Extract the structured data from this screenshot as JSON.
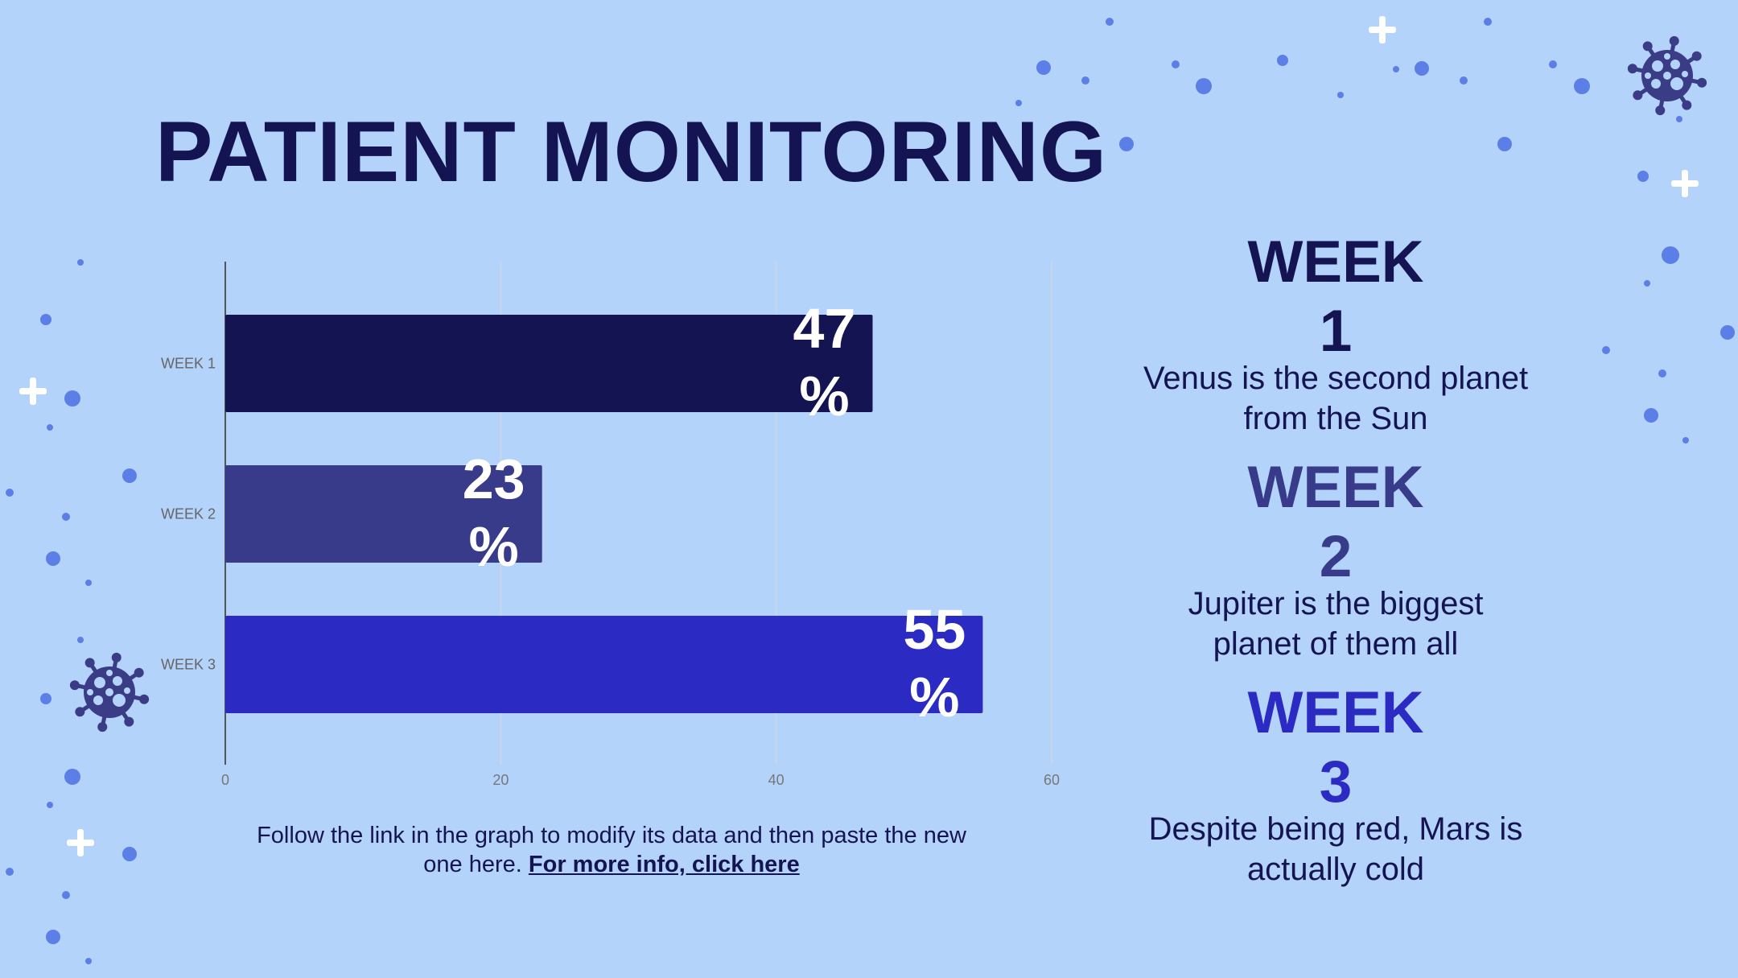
{
  "slide": {
    "title": "PATIENT MONITORING",
    "note_text": "Follow the link in the graph to modify its data and then paste the new one here.",
    "note_link": "For more info, click here"
  },
  "weeks": [
    {
      "heading": "WEEK 1",
      "description": "Venus is the second planet from the Sun",
      "color": "#151452"
    },
    {
      "heading": "WEEK 2",
      "description": "Jupiter is the biggest planet of them all",
      "color": "#383b8a"
    },
    {
      "heading": "WEEK 3",
      "description": "Despite being red, Mars is actually cold",
      "color": "#2b2bc4"
    }
  ],
  "colors": {
    "background": "#b3d3fa",
    "dark": "#151452",
    "dots": "#5b7fe6",
    "plus": "#ffffff"
  },
  "icons": [
    "virus-icon",
    "plus-icon",
    "dot-icon"
  ],
  "chart_data": {
    "type": "bar",
    "orientation": "horizontal",
    "categories": [
      "WEEK 1",
      "WEEK 2",
      "WEEK 3"
    ],
    "values": [
      47,
      23,
      55
    ],
    "data_labels": [
      "47 %",
      "23 %",
      "55 %"
    ],
    "bar_colors": [
      "#151452",
      "#383b8a",
      "#2b2bc4"
    ],
    "xlim": [
      0,
      60
    ],
    "xticks": [
      0,
      20,
      40,
      60
    ],
    "grid": true,
    "title": "",
    "xlabel": "",
    "ylabel": ""
  }
}
